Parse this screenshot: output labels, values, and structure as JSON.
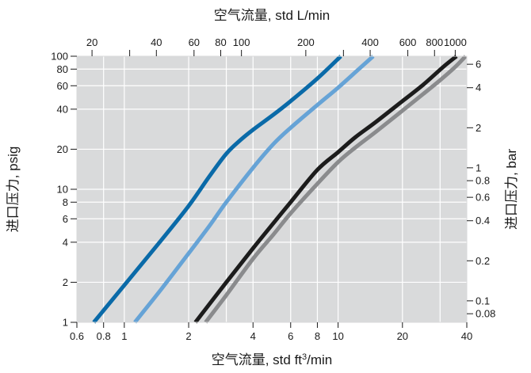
{
  "chart_data": {
    "type": "line",
    "title": "",
    "xlabel": "空气流量, std ft³/min",
    "xlabel_parts": {
      "main": "空气流量, std ft",
      "sup": "3",
      "end": "/min"
    },
    "x2label": "空气流量, std L/min",
    "ylabel": "进口压力, psig",
    "y2label": "进口压力, bar",
    "x_scale": "log",
    "y_scale": "log",
    "xlim": [
      0.6,
      40
    ],
    "ylim": [
      1,
      100
    ],
    "grid": true,
    "colors": {
      "plot_background": "#d9dadb",
      "grid": "#ffffff",
      "axis_text": "#1a1a1a"
    },
    "x_ticks": [
      {
        "value": 0.6,
        "label": "0.6"
      },
      {
        "value": 0.8,
        "label": "0.8"
      },
      {
        "value": 1,
        "label": "1"
      },
      {
        "value": 2,
        "label": "2"
      },
      {
        "value": 4,
        "label": "4"
      },
      {
        "value": 6,
        "label": "6"
      },
      {
        "value": 8,
        "label": "8"
      },
      {
        "value": 10,
        "label": "10"
      },
      {
        "value": 20,
        "label": "20"
      },
      {
        "value": 40,
        "label": "40"
      }
    ],
    "x_gridlines": [
      0.8,
      1,
      2,
      3,
      4,
      6,
      8,
      10,
      20,
      30
    ],
    "x2_ticks": [
      {
        "value": 20,
        "label": "20"
      },
      {
        "value": 30,
        "label": ""
      },
      {
        "value": 40,
        "label": "40"
      },
      {
        "value": 60,
        "label": "60"
      },
      {
        "value": 80,
        "label": "80"
      },
      {
        "value": 100,
        "label": "100"
      },
      {
        "value": 200,
        "label": "200"
      },
      {
        "value": 300,
        "label": ""
      },
      {
        "value": 400,
        "label": "400"
      },
      {
        "value": 600,
        "label": "600"
      },
      {
        "value": 800,
        "label": "800"
      },
      {
        "value": 1000,
        "label": "1000"
      }
    ],
    "x2_per_x": 28.3168,
    "y_ticks": [
      {
        "value": 1,
        "label": "1"
      },
      {
        "value": 2,
        "label": "2"
      },
      {
        "value": 4,
        "label": "4"
      },
      {
        "value": 6,
        "label": "6"
      },
      {
        "value": 8,
        "label": "8"
      },
      {
        "value": 10,
        "label": "10"
      },
      {
        "value": 20,
        "label": "20"
      },
      {
        "value": 40,
        "label": "40"
      },
      {
        "value": 60,
        "label": "60"
      },
      {
        "value": 80,
        "label": "80"
      },
      {
        "value": 100,
        "label": "100"
      }
    ],
    "y_gridlines": [
      2,
      4,
      6,
      8,
      10,
      20,
      40,
      60,
      80
    ],
    "y2_ticks": [
      {
        "value": 0.08,
        "label": "0.08"
      },
      {
        "value": 0.1,
        "label": "0.1"
      },
      {
        "value": 0.2,
        "label": "0.2"
      },
      {
        "value": 0.4,
        "label": "0.4"
      },
      {
        "value": 0.6,
        "label": "0.6"
      },
      {
        "value": 0.8,
        "label": "0.8"
      },
      {
        "value": 1,
        "label": "1"
      },
      {
        "value": 2,
        "label": "2"
      },
      {
        "value": 4,
        "label": "4"
      },
      {
        "value": 6,
        "label": "6"
      }
    ],
    "bar_per_psi": 0.0689476,
    "series": [
      {
        "color": "#0a6aa8",
        "x": [
          0.72,
          1.0,
          1.5,
          2.0,
          2.5,
          3.0,
          3.5,
          4.0,
          5.0,
          6.0,
          8.0,
          10.3
        ],
        "y": [
          1,
          1.9,
          4.2,
          7.5,
          12.5,
          18.5,
          23.5,
          28,
          36.5,
          46,
          68,
          100
        ]
      },
      {
        "color": "#66a3d6",
        "x": [
          1.12,
          1.5,
          2.0,
          2.5,
          3.0,
          4.0,
          5.0,
          6.0,
          8.0,
          10.0,
          12.5,
          14.6
        ],
        "y": [
          1,
          1.8,
          3.3,
          5.3,
          8.0,
          14.5,
          22,
          29,
          43,
          58,
          80,
          100
        ]
      },
      {
        "color": "#1c1c1c",
        "x": [
          2.15,
          3.0,
          4.0,
          5.0,
          6.0,
          8.0,
          10.0,
          12.0,
          15.0,
          20.0,
          25.0,
          31.0,
          35.8
        ],
        "y": [
          1,
          2.0,
          3.6,
          5.6,
          8.0,
          14,
          19,
          24.5,
          32,
          46,
          61,
          83,
          100
        ]
      },
      {
        "color": "#8a8b8d",
        "x": [
          2.4,
          3.0,
          4.0,
          5.0,
          6.0,
          8.0,
          10.0,
          12.0,
          15.0,
          20.0,
          25.0,
          30.0,
          35.0,
          39.5
        ],
        "y": [
          1,
          1.6,
          3.0,
          4.6,
          6.6,
          11,
          16,
          20.5,
          27,
          39,
          52,
          66,
          82,
          100
        ]
      }
    ]
  }
}
